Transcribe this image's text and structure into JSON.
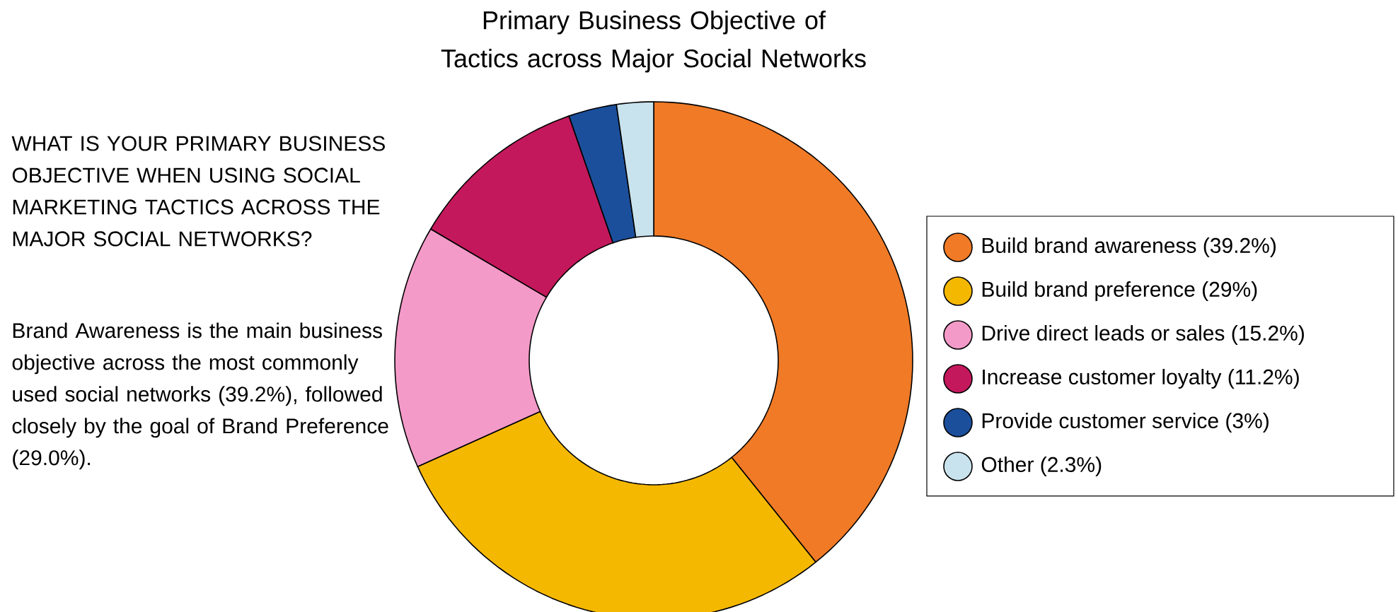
{
  "chart_data": {
    "type": "donut",
    "title": "Primary Business Objective of Tactics across Major Social Networks",
    "categories": [
      "Build brand awareness (39.2%)",
      "Build brand preference (29%)",
      "Drive direct leads or sales (15.2%)",
      "Increase customer loyalty (11.2%)",
      "Provide customer service (3%)",
      "Other (2.3%)"
    ],
    "values": [
      39.2,
      29,
      15.2,
      11.2,
      3,
      2.3
    ],
    "colors": [
      "#f07a26",
      "#f5b800",
      "#f49ac8",
      "#c4185c",
      "#1b4f9c",
      "#c9e3ee"
    ],
    "legend": "right",
    "annotations": [
      "WHAT IS YOUR PRIMARY BUSINESS OBJECTIVE WHEN USING SOCIAL MARKETING TACTICS ACROSS THE MAJOR SOCIAL NETWORKS?",
      "Brand Awareness is the main business objective across the most commonly used social networks (39.2%), followed closely by the goal of Brand Preference (29.0%)."
    ]
  }
}
